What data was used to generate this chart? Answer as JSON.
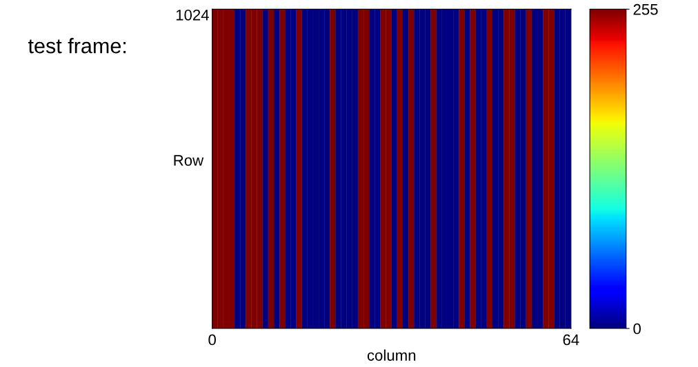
{
  "chart_data": {
    "type": "heatmap",
    "xlabel": "column",
    "ylabel": "Row",
    "annotations": [
      "test frame:",
      "1024",
      "0",
      "64"
    ],
    "categories": [
      null,
      null,
      null,
      null,
      null,
      null,
      null,
      null,
      null,
      null,
      null,
      null,
      null,
      null,
      null,
      null,
      null,
      null,
      null,
      null,
      null,
      null,
      null,
      null,
      null,
      null,
      null,
      null,
      null,
      null,
      null,
      null,
      null,
      null,
      null,
      null,
      null,
      null,
      null,
      null,
      null,
      null,
      null,
      null,
      null,
      null,
      null,
      null,
      null,
      null,
      null,
      null,
      null,
      null,
      null,
      null,
      null,
      null,
      null,
      null,
      null,
      null,
      null,
      null
    ],
    "y_categories": [
      null
    ],
    "cells": [
      [
        255,
        255,
        255,
        255,
        0,
        0,
        255,
        255,
        255,
        0,
        255,
        0,
        255,
        0,
        0,
        255,
        0,
        0,
        0,
        0,
        0,
        255,
        0,
        0,
        0,
        0,
        255,
        255,
        0,
        0,
        255,
        255,
        0,
        255,
        0,
        255,
        0,
        0,
        0,
        255,
        0,
        0,
        0,
        0,
        255,
        0,
        255,
        0,
        0,
        255,
        0,
        0,
        255,
        255,
        0,
        0,
        255,
        0,
        0,
        255,
        255,
        0,
        0,
        0
      ]
    ],
    "clim": [
      0,
      255
    ],
    "cticks": [
      0,
      255
    ]
  }
}
